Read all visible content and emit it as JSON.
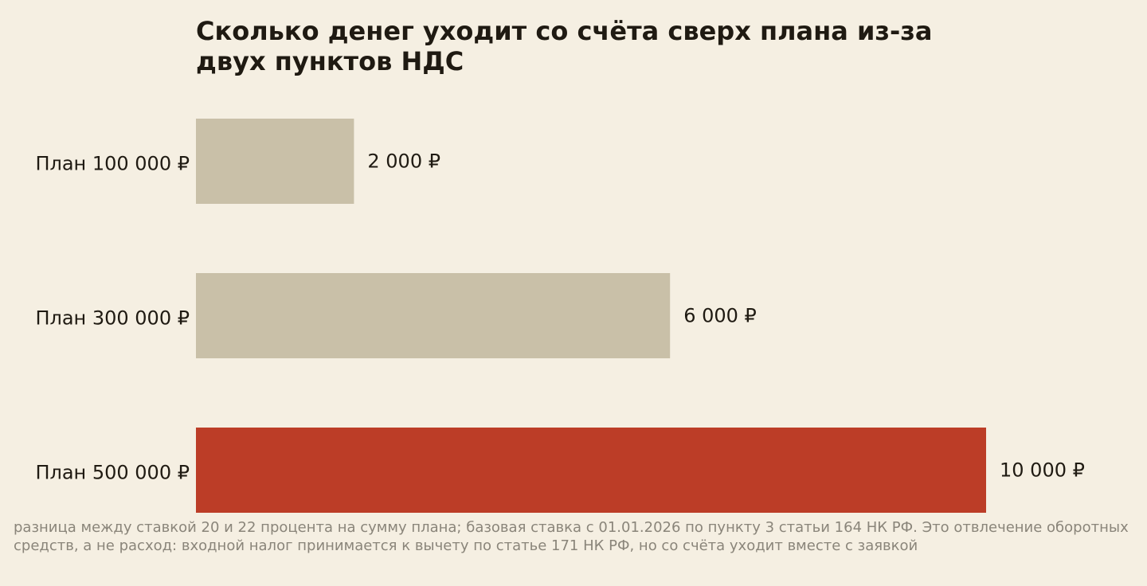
{
  "chart_data": {
    "type": "bar",
    "orientation": "horizontal",
    "title": "Сколько денег уходит со счёта сверх плана из-за двух пунктов НДС",
    "categories": [
      "План 100 000 ₽",
      "План 300 000 ₽",
      "План 500 000 ₽"
    ],
    "values": [
      2000,
      6000,
      10000
    ],
    "value_labels": [
      "2 000 ₽",
      "6 000 ₽",
      "10 000 ₽"
    ],
    "xlim": [
      0,
      10000
    ],
    "bar_colors": [
      "#c9c0a8",
      "#c9c0a8",
      "#bc3d27"
    ],
    "grid": false,
    "legend": "none",
    "note": "разница между ставкой 20 и 22 процента на сумму плана; базовая ставка с 01.01.2026 по пункту 3 статьи 164 НК РФ. Это отвлечение оборотных средств, а не расход: входной налог принимается к вычету по статье 171 НК РФ, но со счёта уходит вместе с заявкой"
  },
  "colors": {
    "background": "#f5efe2",
    "text": "#1f1a12",
    "note_text": "#8a857a"
  }
}
